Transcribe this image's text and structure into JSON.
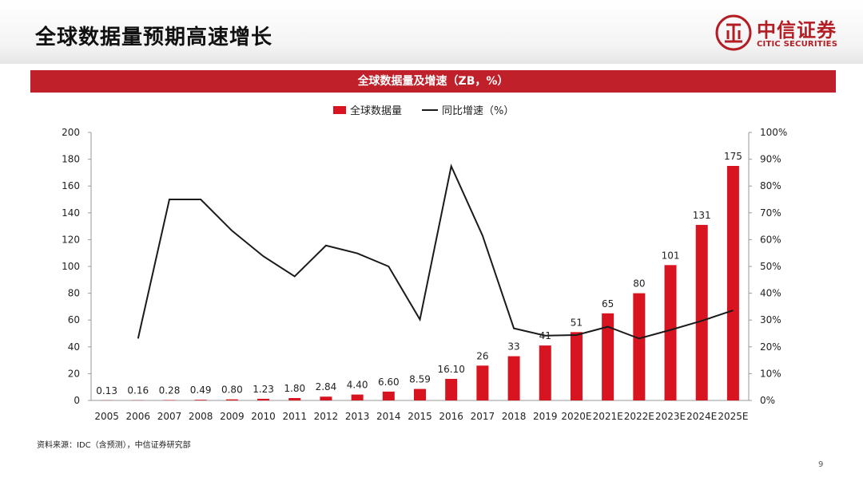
{
  "header": {
    "title": "全球数据量预期高速增长"
  },
  "logo": {
    "cn": "中信证券",
    "en": "CITIC SECURITIES"
  },
  "colors": {
    "bar": "#d7141f",
    "line": "#1a1a1a",
    "banner": "#c0202a",
    "brand": "#b41d24"
  },
  "chart_data": {
    "type": "bar",
    "title": "全球数据量及增速（ZB，%）",
    "categories": [
      "2005",
      "2006",
      "2007",
      "2008",
      "2009",
      "2010",
      "2011",
      "2012",
      "2013",
      "2014",
      "2015",
      "2016",
      "2017",
      "2018",
      "2019",
      "2020E",
      "2021E",
      "2022E",
      "2023E",
      "2024E",
      "2025E"
    ],
    "series": [
      {
        "name": "全球数据量",
        "kind": "bar",
        "axis": "left",
        "values": [
          0.13,
          0.16,
          0.28,
          0.49,
          0.8,
          1.23,
          1.8,
          2.84,
          4.4,
          6.6,
          8.59,
          16.1,
          26,
          33,
          41,
          51,
          65,
          80,
          101,
          131,
          175
        ],
        "labels": [
          "0.13",
          "0.16",
          "0.28",
          "0.49",
          "0.80",
          "1.23",
          "1.80",
          "2.84",
          "4.40",
          "6.60",
          "8.59",
          "16.10",
          "26",
          "33",
          "41",
          "51",
          "65",
          "80",
          "101",
          "131",
          "175"
        ]
      },
      {
        "name": "同比增速（%）",
        "kind": "line",
        "axis": "right",
        "values": [
          null,
          23.1,
          75,
          75,
          63.3,
          53.8,
          46.3,
          57.8,
          54.9,
          50,
          30.2,
          87.4,
          61.5,
          26.9,
          24.2,
          24.4,
          27.5,
          23.1,
          26.3,
          29.7,
          33.6
        ]
      }
    ],
    "ylim_left": [
      0,
      200
    ],
    "yticks_left": [
      "0",
      "20",
      "40",
      "60",
      "80",
      "100",
      "120",
      "140",
      "160",
      "180",
      "200"
    ],
    "ylim_right": [
      0,
      100
    ],
    "yticks_right": [
      "0%",
      "10%",
      "20%",
      "30%",
      "40%",
      "50%",
      "60%",
      "70%",
      "80%",
      "90%",
      "100%"
    ],
    "legend_position": "top-center",
    "grid": false
  },
  "footer": {
    "source": "资料来源：IDC（含预测），中信证券研究部",
    "page_number": "9"
  }
}
